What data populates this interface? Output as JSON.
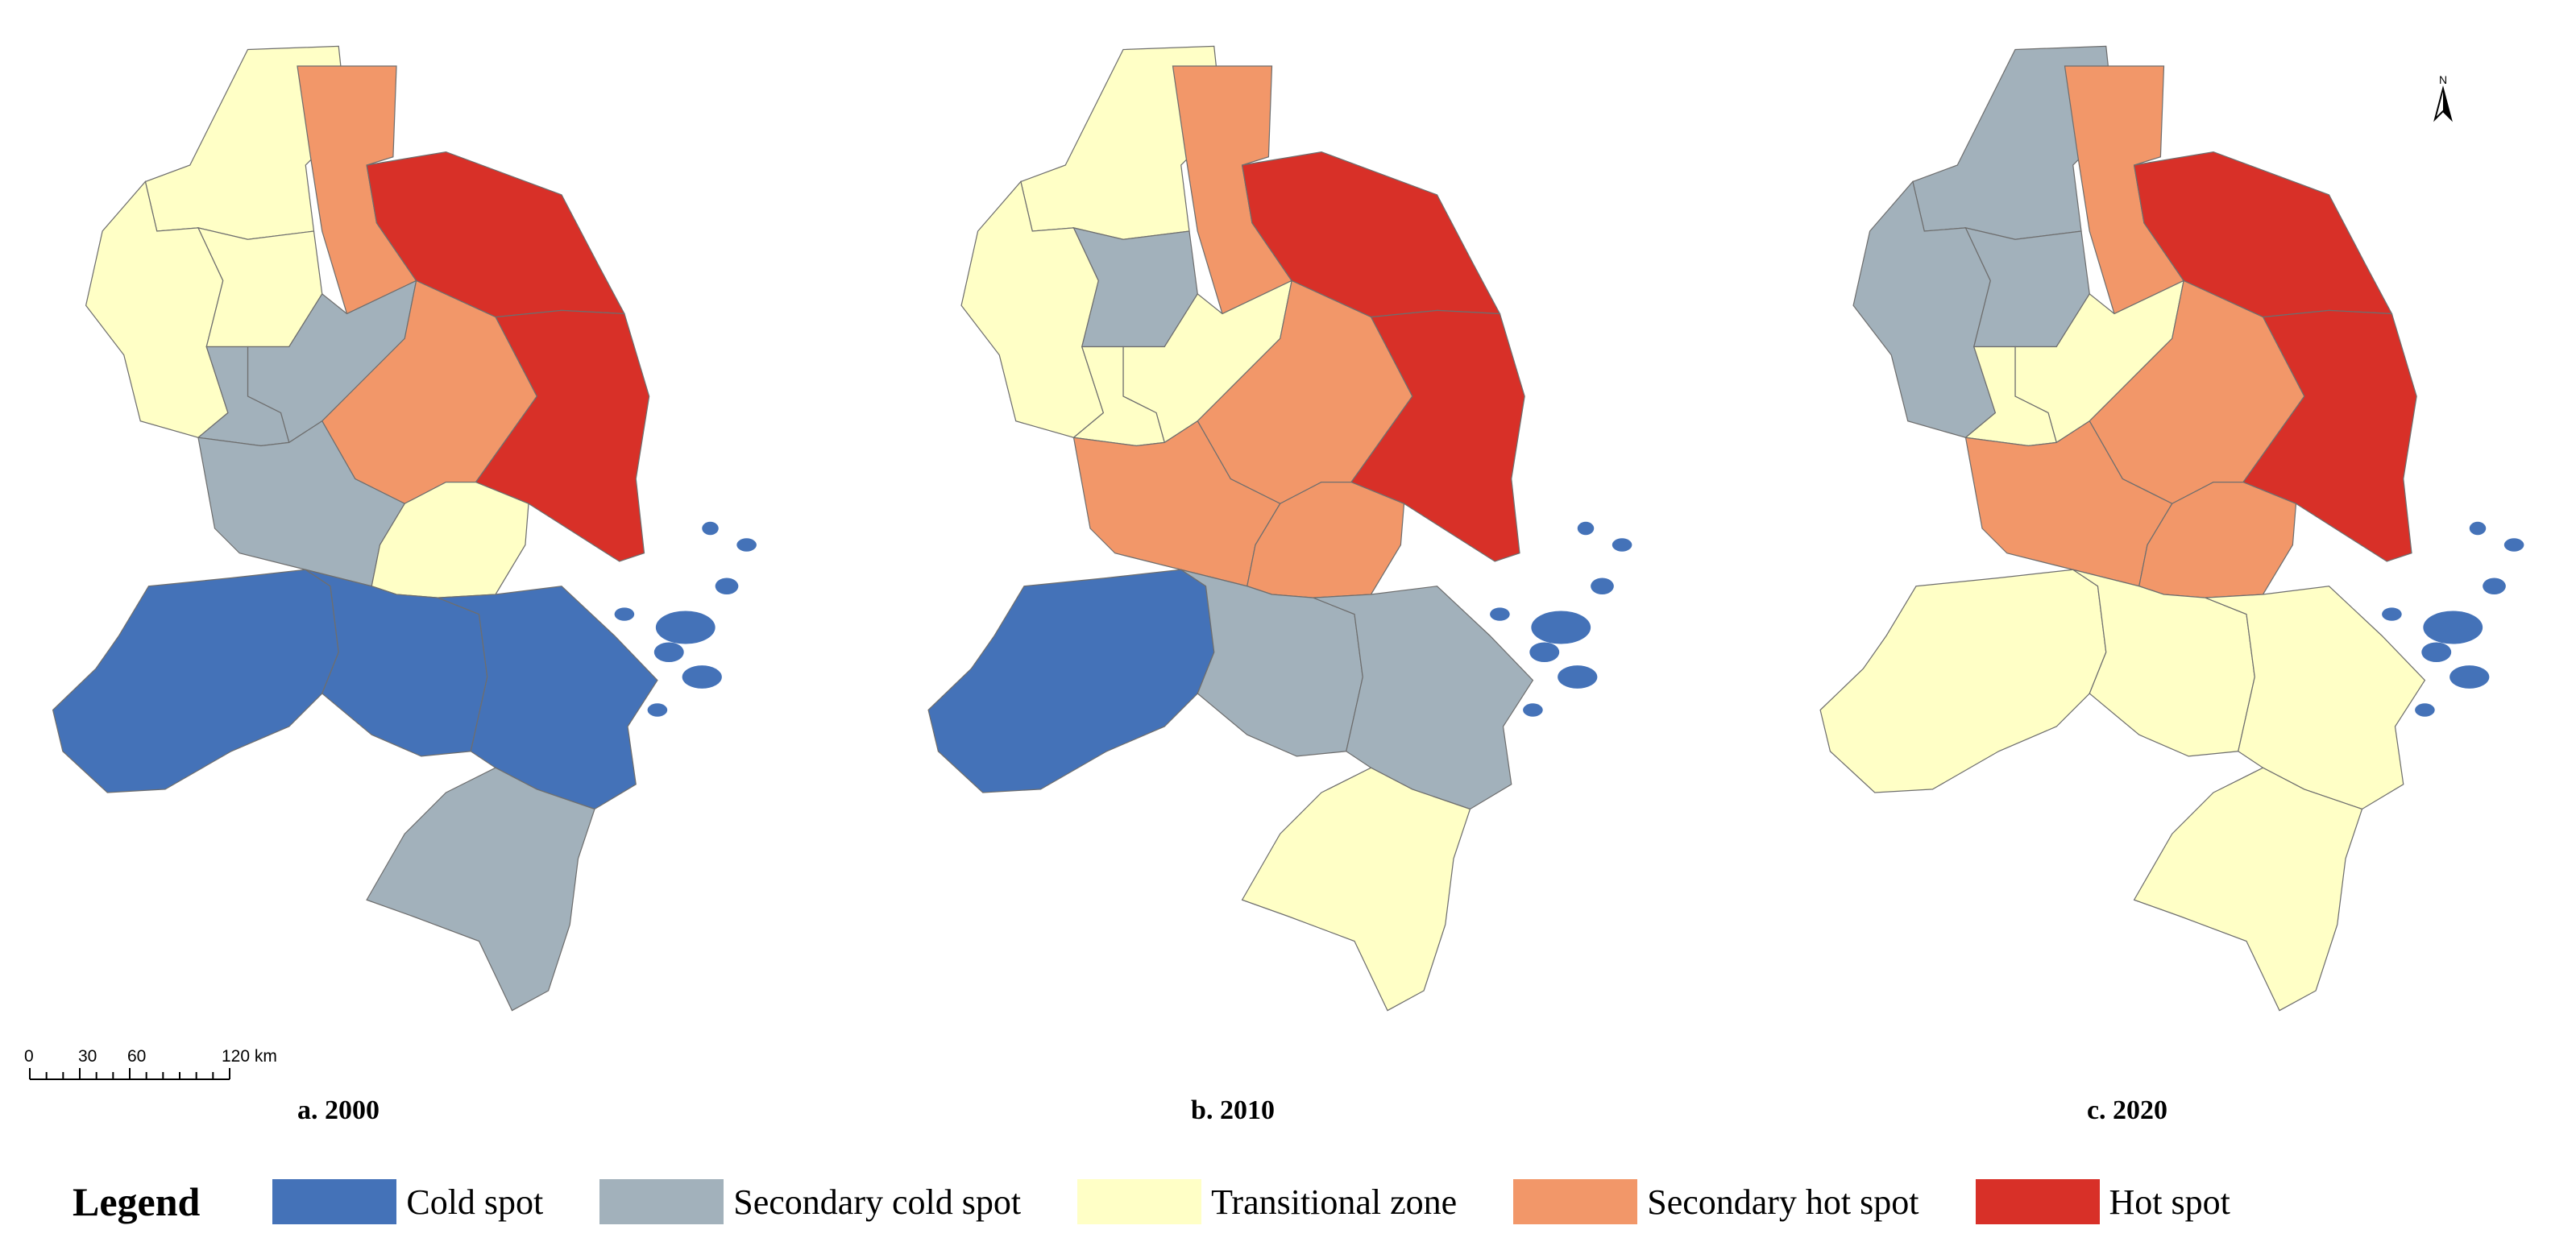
{
  "panels": [
    {
      "caption": "a. 2000",
      "regions": {
        "north": "transitional",
        "west": "transitional",
        "central_w": "transitional",
        "top": "secondary_hot",
        "east_top": "hot",
        "east_mid": "hot",
        "mid_gray": "secondary_cold",
        "centre": "secondary_hot",
        "cw": "secondary_cold",
        "sw": "secondary_cold",
        "sc": "transitional",
        "s_w": "cold",
        "s_c": "cold",
        "s_e": "cold",
        "south": "secondary_cold",
        "islands": "cold"
      }
    },
    {
      "caption": "b. 2010",
      "regions": {
        "north": "transitional",
        "west": "transitional",
        "central_w": "secondary_cold",
        "top": "secondary_hot",
        "east_top": "hot",
        "east_mid": "hot",
        "mid_gray": "transitional",
        "centre": "secondary_hot",
        "cw": "transitional",
        "sw": "secondary_hot",
        "sc": "secondary_hot",
        "s_w": "cold",
        "s_c": "secondary_cold",
        "s_e": "secondary_cold",
        "south": "transitional",
        "islands": "cold"
      }
    },
    {
      "caption": "c. 2020",
      "regions": {
        "north": "secondary_cold",
        "west": "secondary_cold",
        "central_w": "secondary_cold",
        "top": "secondary_hot",
        "east_top": "hot",
        "east_mid": "hot",
        "mid_gray": "transitional",
        "centre": "secondary_hot",
        "cw": "transitional",
        "sw": "secondary_hot",
        "sc": "secondary_hot",
        "s_w": "transitional",
        "s_c": "transitional",
        "s_e": "transitional",
        "south": "transitional",
        "islands": "cold"
      }
    }
  ],
  "legend": {
    "title": "Legend",
    "items": [
      {
        "key": "cold",
        "label": "Cold spot",
        "color": "#4472b8"
      },
      {
        "key": "secondary_cold",
        "label": "Secondary cold spot",
        "color": "#a2b1bb"
      },
      {
        "key": "transitional",
        "label": "Transitional zone",
        "color": "#ffffc6"
      },
      {
        "key": "secondary_hot",
        "label": "Secondary hot spot",
        "color": "#f29769"
      },
      {
        "key": "hot",
        "label": "Hot spot",
        "color": "#d83028"
      }
    ]
  },
  "scalebar": {
    "ticks": [
      "0",
      "30",
      "60",
      "120 km"
    ]
  },
  "north_arrow": {
    "label": "N"
  }
}
